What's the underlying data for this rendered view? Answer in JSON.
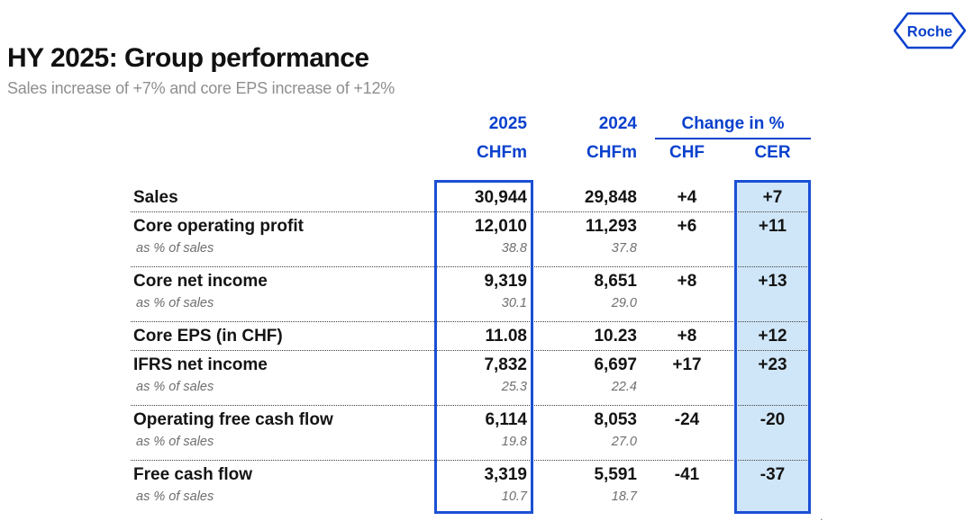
{
  "slide": {
    "title": "HY 2025: Group performance",
    "subtitle": "Sales increase of +7% and core EPS increase of +12%",
    "logo_text": "Roche",
    "stray_mark": ".",
    "colors": {
      "brand_blue": "#0b41cd",
      "box_border": "#1a50d4",
      "cer_fill": "#cfe6f8",
      "subtitle_gray": "#8f8f8f"
    }
  },
  "table": {
    "headers": {
      "year_2025": "2025",
      "year_2024": "2024",
      "unit_2025": "CHFm",
      "unit_2024": "CHFm",
      "change_group": "Change in %",
      "chf": "CHF",
      "cer": "CER"
    },
    "rows": [
      {
        "label": "Sales",
        "v2025": "30,944",
        "v2024": "29,848",
        "chf": "+4",
        "cer": "+7"
      },
      {
        "label": "Core operating profit",
        "v2025": "12,010",
        "v2024": "11,293",
        "chf": "+6",
        "cer": "+11",
        "sub": {
          "label": "as % of sales",
          "v2025": "38.8",
          "v2024": "37.8"
        }
      },
      {
        "label": "Core net income",
        "v2025": "9,319",
        "v2024": "8,651",
        "chf": "+8",
        "cer": "+13",
        "sub": {
          "label": "as % of sales",
          "v2025": "30.1",
          "v2024": "29.0"
        }
      },
      {
        "label": "Core EPS (in CHF)",
        "v2025": "11.08",
        "v2024": "10.23",
        "chf": "+8",
        "cer": "+12"
      },
      {
        "label": "IFRS net income",
        "v2025": "7,832",
        "v2024": "6,697",
        "chf": "+17",
        "cer": "+23",
        "sub": {
          "label": "as % of sales",
          "v2025": "25.3",
          "v2024": "22.4"
        }
      },
      {
        "label": "Operating free cash flow",
        "v2025": "6,114",
        "v2024": "8,053",
        "chf": "-24",
        "cer": "-20",
        "sub": {
          "label": "as % of sales",
          "v2025": "19.8",
          "v2024": "27.0"
        }
      },
      {
        "label": "Free cash flow",
        "v2025": "3,319",
        "v2024": "5,591",
        "chf": "-41",
        "cer": "-37",
        "sub": {
          "label": "as % of sales",
          "v2025": "10.7",
          "v2024": "18.7"
        }
      }
    ]
  }
}
